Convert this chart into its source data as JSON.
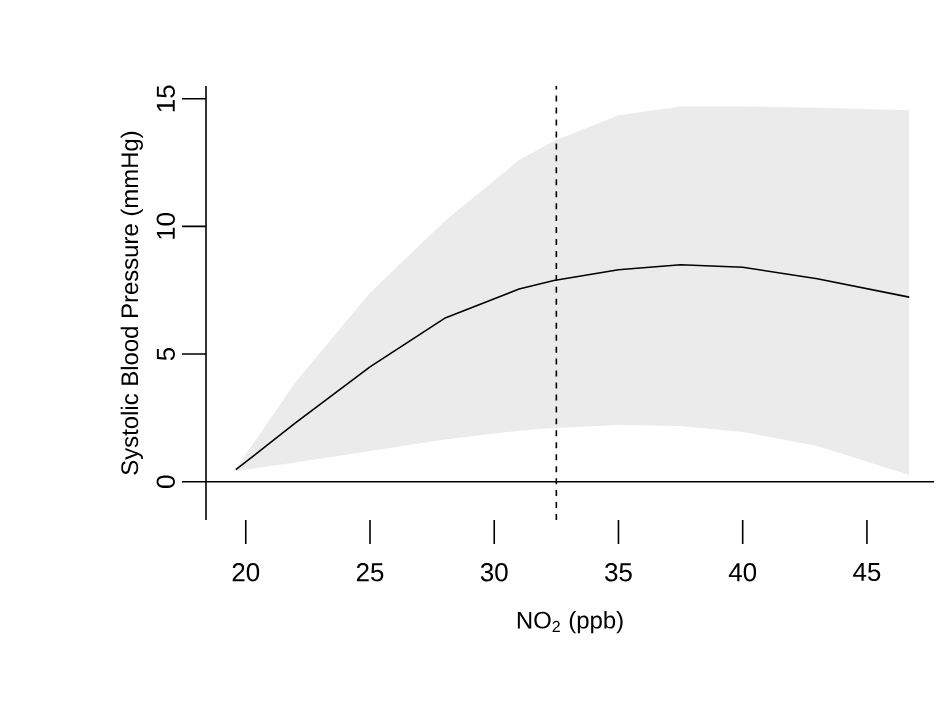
{
  "chart_data": {
    "type": "line",
    "xlabel": "NO$_{2}$ (ppb)",
    "ylabel": "Systolic Blood Pressure (mmHg)",
    "x": [
      19.6,
      22,
      25,
      28,
      31,
      32.4,
      35,
      37.5,
      40,
      43,
      46.7
    ],
    "series": [
      {
        "color": "#000000",
        "values": [
          0.47,
          2.3,
          4.5,
          6.4,
          7.55,
          7.88,
          8.3,
          8.5,
          8.4,
          7.95,
          7.23
        ],
        "lower": [
          0.42,
          0.75,
          1.2,
          1.65,
          2.0,
          2.1,
          2.22,
          2.18,
          1.95,
          1.4,
          0.26
        ],
        "upper": [
          0.5,
          3.9,
          7.4,
          10.2,
          12.6,
          13.35,
          14.35,
          14.7,
          14.7,
          14.65,
          14.55
        ]
      }
    ],
    "xlim": [
      18.4,
      47.7
    ],
    "ylim": [
      -1.5,
      15.5
    ],
    "xticks": [
      20,
      25,
      30,
      35,
      40,
      45
    ],
    "yticks": [
      0,
      5,
      10,
      15
    ],
    "ref_lines": [
      {
        "axis": "y",
        "value": 0,
        "line_style": "solid",
        "color": "#000000"
      },
      {
        "axis": "x",
        "value": 32.5,
        "line_style": "dashed",
        "color": "#000000"
      }
    ],
    "grid": false,
    "marker": "none",
    "line_style": "solid"
  }
}
